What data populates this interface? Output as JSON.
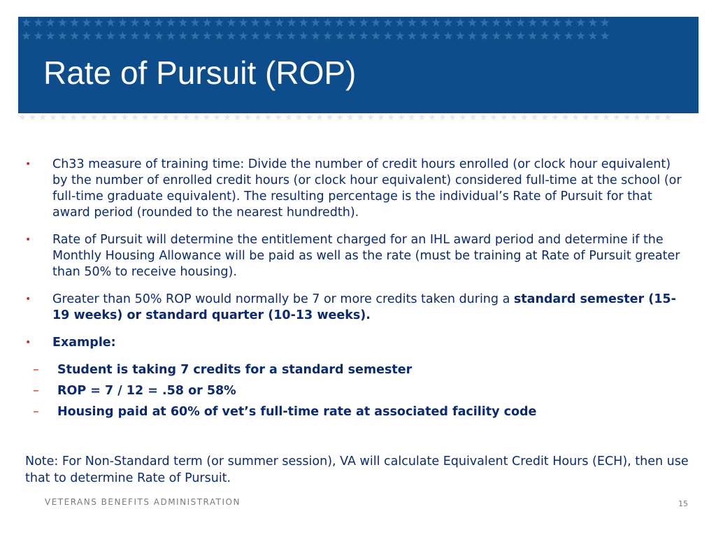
{
  "slide": {
    "title": "Rate of Pursuit (ROP)",
    "bullets": [
      {
        "text": "Ch33 measure of training time: Divide the number of credit hours enrolled (or clock hour equivalent) by the number of enrolled credit hours (or clock hour equivalent) considered full-time at the school (or full-time graduate equivalent).  The resulting percentage is the individual’s Rate of Pursuit for that award period (rounded to the nearest hundredth)."
      },
      {
        "text": "Rate of Pursuit will determine the entitlement charged for an IHL award period and determine if the Monthly Housing Allowance will be paid as well as the rate (must be training at Rate of Pursuit greater than 50% to receive housing)."
      },
      {
        "text_prefix": "Greater than 50% ROP would normally be 7 or more credits taken during a ",
        "text_bold": "standard semester (15-19 weeks) or standard quarter (10-13 weeks)."
      },
      {
        "label": "Example:",
        "sub_items": [
          "Student is taking 7 credits for a standard semester",
          "ROP = 7 / 12 = .58 or 58%",
          "Housing paid at 60% of vet’s full-time rate at associated facility code"
        ]
      }
    ],
    "bullet_marker": "•",
    "sub_marker": "–",
    "note": "Note: For Non-Standard term (or summer session), VA will calculate Equivalent Credit Hours (ECH), then use that to determine Rate of Pursuit.",
    "footer": "VETERANS BENEFITS ADMINISTRATION",
    "page_number": "15"
  },
  "colors": {
    "title_bar": "#0d4d8c",
    "body_text": "#0a2a73",
    "bullet_marker": "#c0332f",
    "footer_text": "#7a7a7a"
  }
}
